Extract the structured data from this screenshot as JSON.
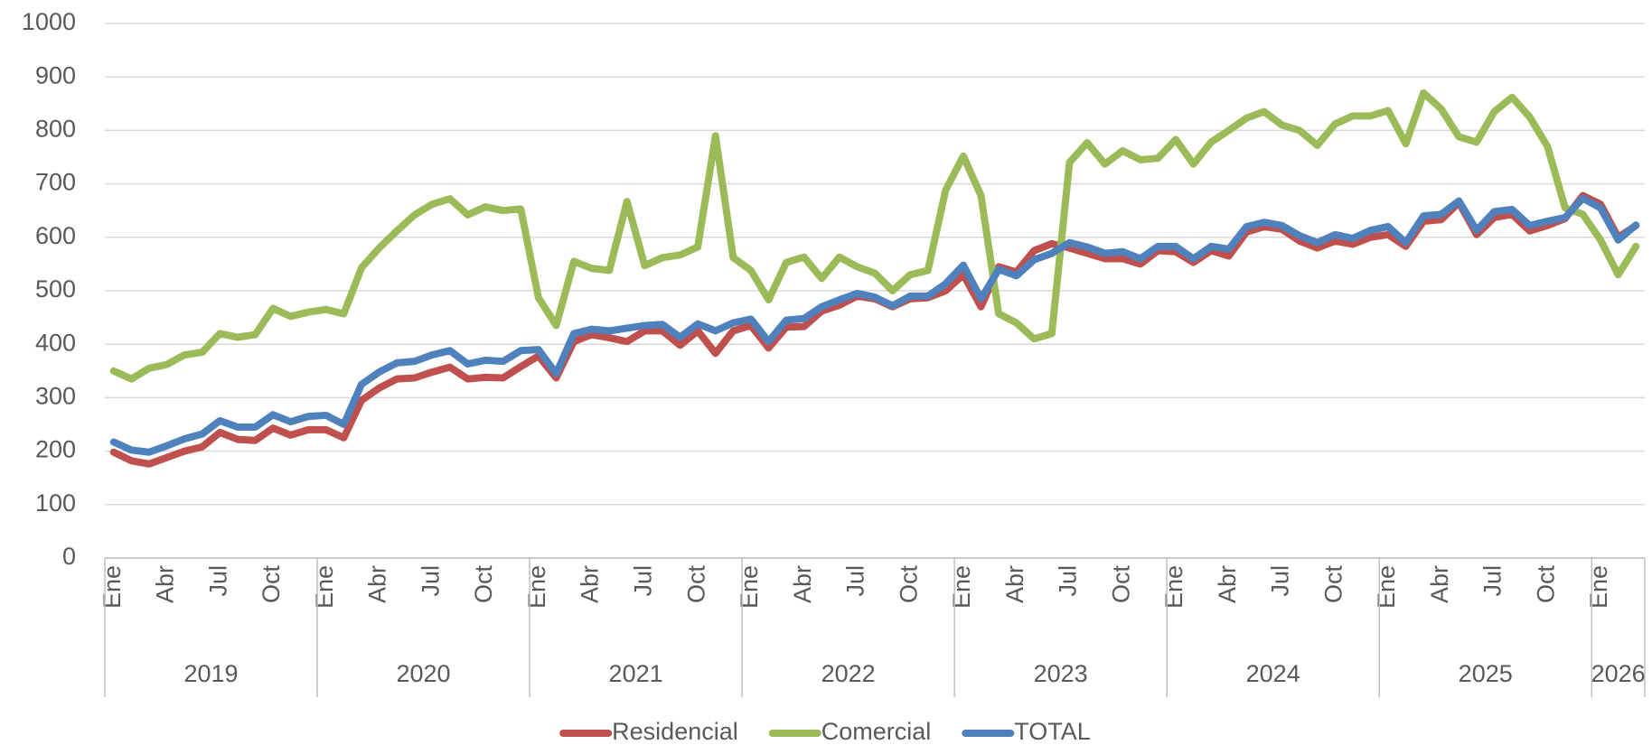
{
  "chart_data": {
    "type": "line",
    "categories": [
      "Ene",
      null,
      null,
      "Abr",
      null,
      null,
      "Jul",
      null,
      null,
      "Oct",
      null,
      null,
      "Ene",
      null,
      null,
      "Abr",
      null,
      null,
      "Jul",
      null,
      null,
      "Oct",
      null,
      null,
      "Ene",
      null,
      null,
      "Abr",
      null,
      null,
      "Jul",
      null,
      null,
      "Oct",
      null,
      null,
      "Ene",
      null,
      null,
      "Abr",
      null,
      null,
      "Jul",
      null,
      null,
      "Oct",
      null,
      null,
      "Ene",
      null,
      null,
      "Abr",
      null,
      null,
      "Jul",
      null,
      null,
      "Oct",
      null,
      null,
      "Ene",
      null,
      null,
      "Abr",
      null,
      null,
      "Jul",
      null,
      null,
      "Oct",
      null,
      null,
      "Ene",
      null,
      null,
      "Abr",
      null,
      null,
      "Jul",
      null,
      null,
      "Oct",
      null,
      null,
      "Ene",
      null,
      null
    ],
    "groups": [
      {
        "label": "2019",
        "size": 12
      },
      {
        "label": "2020",
        "size": 12
      },
      {
        "label": "2021",
        "size": 12
      },
      {
        "label": "2022",
        "size": 12
      },
      {
        "label": "2023",
        "size": 12
      },
      {
        "label": "2024",
        "size": 12
      },
      {
        "label": "2025",
        "size": 12
      },
      {
        "label": "2026",
        "size": 3
      }
    ],
    "series": [
      {
        "name": "Residencial",
        "color": "#c0504d",
        "values": [
          198,
          182,
          176,
          188,
          200,
          208,
          235,
          222,
          220,
          243,
          230,
          240,
          240,
          225,
          295,
          318,
          335,
          337,
          348,
          357,
          335,
          338,
          337,
          358,
          378,
          337,
          405,
          418,
          412,
          405,
          425,
          425,
          398,
          425,
          383,
          425,
          435,
          393,
          432,
          433,
          462,
          473,
          490,
          485,
          470,
          485,
          487,
          500,
          530,
          470,
          545,
          535,
          575,
          588,
          580,
          570,
          560,
          560,
          550,
          575,
          573,
          553,
          575,
          565,
          610,
          620,
          615,
          593,
          580,
          593,
          587,
          600,
          605,
          583,
          630,
          633,
          665,
          605,
          637,
          643,
          612,
          622,
          635,
          678,
          662,
          600,
          622
        ]
      },
      {
        "name": "Comercial",
        "color": "#9bbb59",
        "values": [
          350,
          335,
          355,
          362,
          380,
          385,
          420,
          413,
          418,
          467,
          452,
          460,
          465,
          457,
          543,
          580,
          612,
          642,
          662,
          672,
          642,
          657,
          650,
          653,
          487,
          435,
          555,
          542,
          538,
          667,
          547,
          562,
          567,
          582,
          790,
          562,
          538,
          483,
          553,
          563,
          523,
          563,
          545,
          533,
          500,
          530,
          538,
          688,
          752,
          678,
          457,
          440,
          410,
          420,
          740,
          777,
          737,
          762,
          745,
          748,
          783,
          737,
          778,
          800,
          823,
          835,
          810,
          800,
          772,
          812,
          827,
          827,
          837,
          775,
          870,
          840,
          788,
          778,
          835,
          862,
          825,
          770,
          655,
          643,
          595,
          530,
          583
        ]
      },
      {
        "name": "TOTAL",
        "color": "#4f81bd",
        "values": [
          217,
          202,
          198,
          210,
          223,
          232,
          257,
          245,
          245,
          268,
          255,
          265,
          267,
          250,
          325,
          348,
          365,
          368,
          380,
          388,
          363,
          370,
          368,
          388,
          390,
          345,
          420,
          428,
          425,
          430,
          435,
          437,
          413,
          438,
          425,
          440,
          447,
          405,
          445,
          448,
          470,
          483,
          495,
          488,
          472,
          490,
          490,
          513,
          548,
          485,
          540,
          528,
          558,
          570,
          590,
          582,
          570,
          573,
          560,
          583,
          583,
          560,
          583,
          578,
          620,
          628,
          622,
          603,
          590,
          605,
          598,
          613,
          620,
          590,
          640,
          643,
          668,
          613,
          648,
          652,
          622,
          630,
          637,
          673,
          655,
          595,
          623
        ]
      }
    ],
    "ylim": [
      0,
      1000
    ],
    "yticks": [
      0,
      100,
      200,
      300,
      400,
      500,
      600,
      700,
      800,
      900,
      1000
    ],
    "grid": true,
    "legend": "bottom"
  }
}
